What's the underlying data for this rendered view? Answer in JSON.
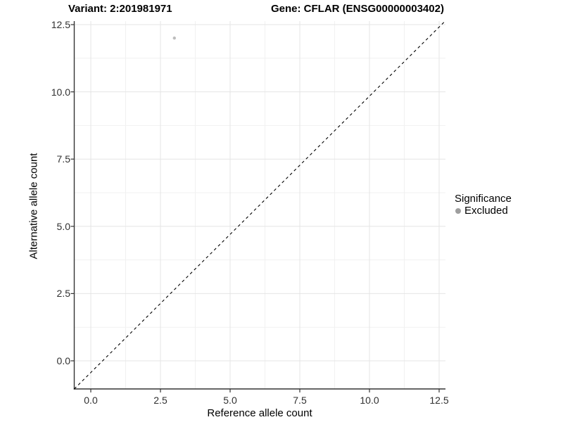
{
  "chart_data": {
    "type": "scatter",
    "titles": {
      "left": "Variant: 2:201981971",
      "right": "Gene: CFLAR (ENSG00000003402)"
    },
    "xlabel": "Reference allele count",
    "ylabel": "Alternative allele count",
    "x_ticks": {
      "values": [
        0,
        2.5,
        5,
        7.5,
        10,
        12.5
      ],
      "labels": [
        "0.0",
        "2.5",
        "5.0",
        "7.5",
        "10.0",
        "12.5"
      ]
    },
    "y_ticks": {
      "values": [
        0,
        2.5,
        5,
        7.5,
        10,
        12.5
      ],
      "labels": [
        "0.0",
        "2.5",
        "5.0",
        "7.5",
        "10.0",
        "12.5"
      ]
    },
    "xlim": [
      -0.6,
      12.75
    ],
    "ylim": [
      -1.05,
      12.65
    ],
    "grid": {
      "major": true,
      "minor": true
    },
    "series": [
      {
        "name": "Excluded",
        "marker_color": "#bdbdbd",
        "points": [
          {
            "x": 3,
            "y": 12
          }
        ]
      }
    ],
    "reference_line": {
      "style": "dashed",
      "color": "#000000",
      "description": "y = x diagonal"
    },
    "legend": {
      "title": "Significance",
      "position": "right",
      "entries": [
        {
          "label": "Excluded",
          "marker_color": "#9e9e9e"
        }
      ]
    },
    "colors": {
      "grid_major": "#e5e5e5",
      "grid_minor": "#f1f1f1",
      "axis_line": "#333333",
      "tick_mark": "#333333",
      "tick_label": "#303030"
    }
  }
}
